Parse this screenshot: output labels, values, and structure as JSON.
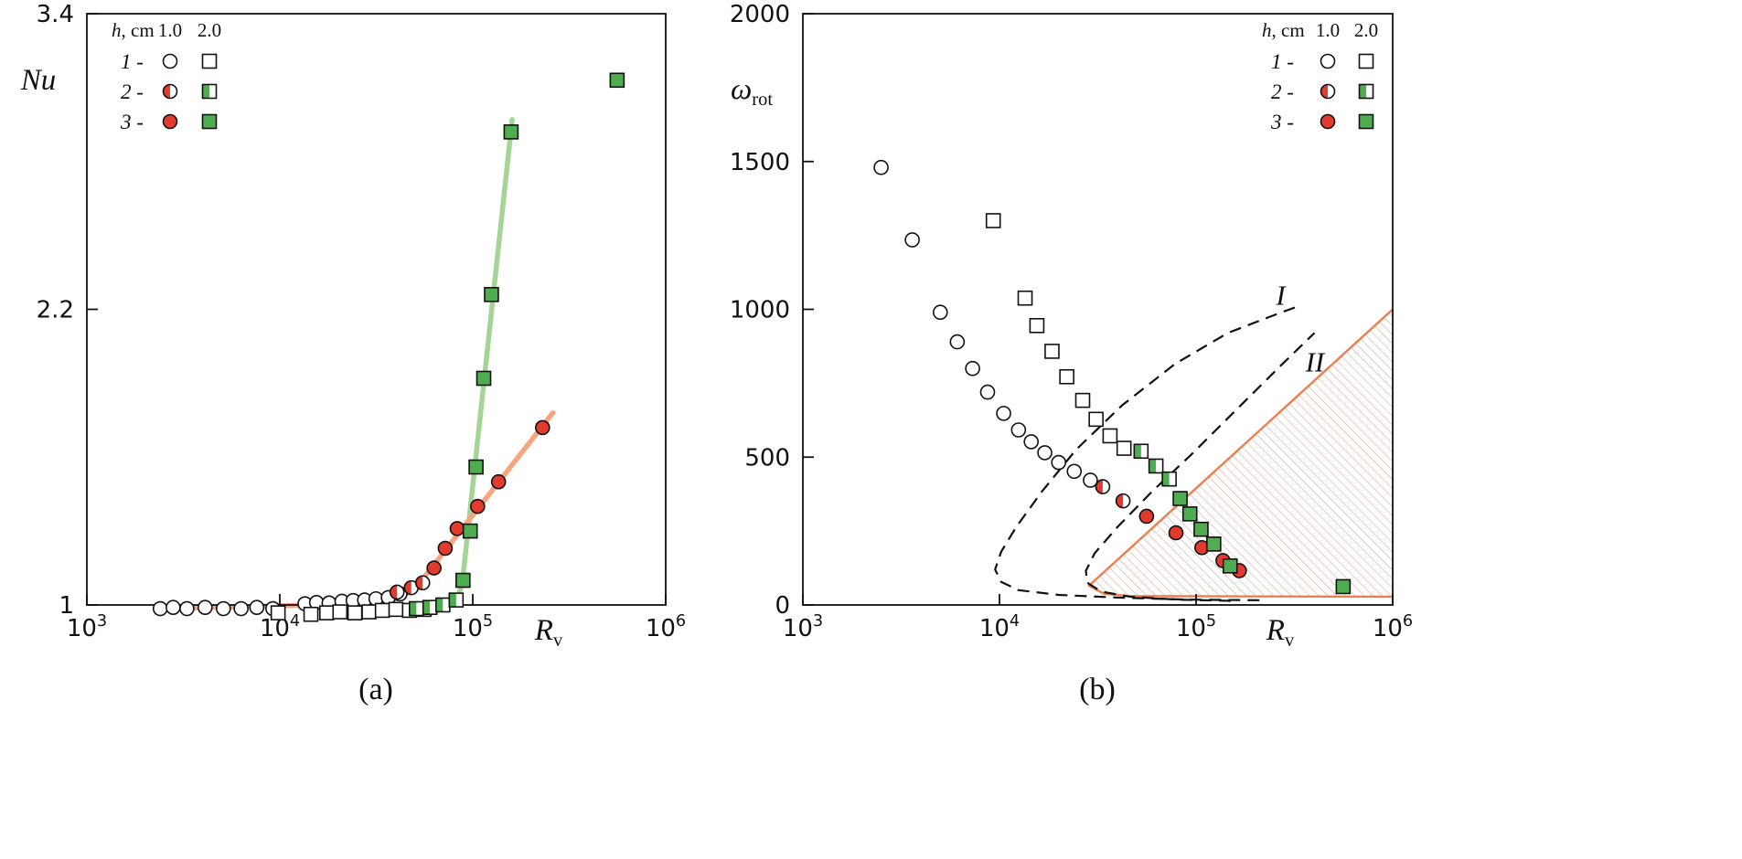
{
  "captions": {
    "a": "(a)",
    "b": "(b)"
  },
  "colors": {
    "red": "#e23b2e",
    "green": "#4fad50",
    "green_line": "#a5d596",
    "orange_line": "#f7a47f",
    "orange_boundary": "#ee7d4f",
    "hatch": "#c9a18c",
    "axis": "#111111"
  },
  "legend": {
    "header_h": "h",
    "header_unit": ", cm",
    "col1": "1.0",
    "col2": "2.0",
    "rows": [
      {
        "label": "1 -",
        "markers": [
          "circle-open",
          "square-open"
        ]
      },
      {
        "label": "2 -",
        "markers": [
          "circle-half",
          "square-half"
        ]
      },
      {
        "label": "3 -",
        "markers": [
          "circle-filled",
          "square-filled"
        ]
      }
    ]
  },
  "chart_data": [
    {
      "id": "a",
      "type": "scatter",
      "xscale": "log",
      "xlabel": {
        "main": "R",
        "sub": "v"
      },
      "ylabel": {
        "main": "Nu",
        "sub": ""
      },
      "xlim": [
        1000,
        1000000
      ],
      "ylim": [
        1,
        3.4
      ],
      "xticks": [
        {
          "value": 1000,
          "exp": "3"
        },
        {
          "value": 10000,
          "exp": "4"
        },
        {
          "value": 100000,
          "exp": "5"
        },
        {
          "value": 1000000,
          "exp": "6"
        }
      ],
      "yticks": [
        {
          "value": 1,
          "label": "1"
        },
        {
          "value": 2.2,
          "label": "2.2"
        },
        {
          "value": 3.4,
          "label": "3.4"
        }
      ],
      "legend_position": "top-left",
      "series": [
        {
          "name": "regime1-h1-open-circles",
          "marker": "circle-open",
          "points": [
            [
              2400,
              0.985
            ],
            [
              2800,
              0.99
            ],
            [
              3300,
              0.985
            ],
            [
              4100,
              0.99
            ],
            [
              5100,
              0.985
            ],
            [
              6300,
              0.985
            ],
            [
              7600,
              0.99
            ],
            [
              9200,
              0.985
            ],
            [
              13500,
              1.005
            ],
            [
              15500,
              1.01
            ],
            [
              18000,
              1.008
            ],
            [
              21000,
              1.015
            ],
            [
              24000,
              1.018
            ],
            [
              27500,
              1.02
            ],
            [
              31500,
              1.025
            ],
            [
              36500,
              1.03
            ],
            [
              42000,
              1.045
            ]
          ]
        },
        {
          "name": "regime1-h2-open-squares",
          "marker": "square-open",
          "points": [
            [
              9800,
              0.968
            ],
            [
              14500,
              0.962
            ],
            [
              17500,
              0.968
            ],
            [
              20500,
              0.972
            ],
            [
              24500,
              0.968
            ],
            [
              29000,
              0.972
            ],
            [
              34000,
              0.978
            ],
            [
              40000,
              0.982
            ],
            [
              47000,
              0.978
            ],
            [
              56000,
              0.982
            ]
          ]
        },
        {
          "name": "regime2-h1-half-circles",
          "marker": "circle-half",
          "points": [
            [
              40500,
              1.052
            ],
            [
              48000,
              1.07
            ],
            [
              55000,
              1.09
            ]
          ]
        },
        {
          "name": "regime3-h1-filled-circles",
          "marker": "circle-filled",
          "points": [
            [
              63000,
              1.15
            ],
            [
              72000,
              1.23
            ],
            [
              83000,
              1.31
            ],
            [
              106000,
              1.4
            ],
            [
              136000,
              1.5
            ],
            [
              230000,
              1.72
            ]
          ]
        },
        {
          "name": "regime2-h2-half-squares",
          "marker": "square-half",
          "points": [
            [
              51000,
              0.985
            ],
            [
              60000,
              0.99
            ],
            [
              70000,
              1.0
            ],
            [
              82000,
              1.02
            ]
          ]
        },
        {
          "name": "regime3-h2-filled-squares",
          "marker": "square-filled",
          "points": [
            [
              89000,
              1.1
            ],
            [
              97000,
              1.3
            ],
            [
              104000,
              1.56
            ],
            [
              114000,
              1.92
            ],
            [
              125000,
              2.26
            ],
            [
              158000,
              2.92
            ],
            [
              560000,
              3.13
            ]
          ]
        }
      ],
      "lines": [
        {
          "name": "fit-line-green",
          "color_key": "green_line",
          "width": 5.5,
          "points": [
            [
              46000,
              0.99
            ],
            [
              80000,
              1.0
            ],
            [
              88000,
              1.08
            ],
            [
              160000,
              2.97
            ]
          ]
        },
        {
          "name": "fit-line-orange",
          "color_key": "orange_line",
          "width": 5.5,
          "points": [
            [
              2300,
              0.985
            ],
            [
              15000,
              1.0
            ],
            [
              40000,
              1.025
            ],
            [
              52000,
              1.08
            ],
            [
              260000,
              1.78
            ]
          ]
        }
      ],
      "curves": [],
      "regions": [],
      "labels": []
    },
    {
      "id": "b",
      "type": "scatter",
      "xscale": "log",
      "xlabel": {
        "main": "R",
        "sub": "v"
      },
      "ylabel": {
        "main": "ω",
        "sub": "rot"
      },
      "xlim": [
        1000,
        1000000
      ],
      "ylim": [
        0,
        2000
      ],
      "xticks": [
        {
          "value": 1000,
          "exp": "3"
        },
        {
          "value": 10000,
          "exp": "4"
        },
        {
          "value": 100000,
          "exp": "5"
        },
        {
          "value": 1000000,
          "exp": "6"
        }
      ],
      "yticks": [
        {
          "value": 0,
          "label": "0"
        },
        {
          "value": 500,
          "label": "500"
        },
        {
          "value": 1000,
          "label": "1000"
        },
        {
          "value": 1500,
          "label": "1500"
        },
        {
          "value": 2000,
          "label": "2000"
        }
      ],
      "legend_position": "top-right",
      "series": [
        {
          "name": "regime1-h1-open-circles",
          "marker": "circle-open",
          "points": [
            [
              2500,
              1480
            ],
            [
              3600,
              1235
            ],
            [
              5000,
              990
            ],
            [
              6100,
              890
            ],
            [
              7300,
              800
            ],
            [
              8700,
              720
            ],
            [
              10500,
              648
            ],
            [
              12500,
              592
            ],
            [
              14500,
              552
            ],
            [
              17000,
              515
            ],
            [
              20000,
              482
            ],
            [
              24000,
              452
            ],
            [
              29000,
              422
            ]
          ]
        },
        {
          "name": "regime1-h2-open-squares",
          "marker": "square-open",
          "points": [
            [
              9300,
              1300
            ],
            [
              13500,
              1038
            ],
            [
              15500,
              945
            ],
            [
              18500,
              858
            ],
            [
              22000,
              772
            ],
            [
              26500,
              692
            ],
            [
              31000,
              628
            ],
            [
              36500,
              572
            ],
            [
              43000,
              530
            ]
          ]
        },
        {
          "name": "regime2-h1-half-circles",
          "marker": "circle-half",
          "points": [
            [
              33500,
              400
            ],
            [
              42500,
              352
            ]
          ]
        },
        {
          "name": "regime3-h1-filled-circles",
          "marker": "circle-filled",
          "points": [
            [
              56000,
              300
            ],
            [
              79000,
              244
            ],
            [
              107000,
              194
            ],
            [
              137000,
              150
            ],
            [
              166000,
              116
            ]
          ]
        },
        {
          "name": "regime2-h2-half-squares",
          "marker": "square-half",
          "points": [
            [
              52500,
              520
            ],
            [
              62500,
              470
            ],
            [
              73000,
              426
            ]
          ]
        },
        {
          "name": "regime3-h2-filled-squares",
          "marker": "square-filled",
          "points": [
            [
              83000,
              360
            ],
            [
              93000,
              308
            ],
            [
              106000,
              256
            ],
            [
              123000,
              206
            ],
            [
              149000,
              132
            ],
            [
              560000,
              62
            ]
          ]
        }
      ],
      "lines": [],
      "curves": [
        {
          "name": "stability-boundary-I-dashed",
          "points": [
            [
              210000,
              16
            ],
            [
              90000,
              18
            ],
            [
              40000,
              25
            ],
            [
              20000,
              34
            ],
            [
              12500,
              50
            ],
            [
              10200,
              78
            ],
            [
              9500,
              120
            ],
            [
              10200,
              180
            ],
            [
              12200,
              265
            ],
            [
              16500,
              385
            ],
            [
              24500,
              525
            ],
            [
              42000,
              675
            ],
            [
              78000,
              815
            ],
            [
              145000,
              920
            ],
            [
              260000,
              985
            ],
            [
              330000,
              1010
            ]
          ]
        },
        {
          "name": "stability-boundary-II-dashed",
          "points": [
            [
              150000,
              14
            ],
            [
              80000,
              18
            ],
            [
              46000,
              28
            ],
            [
              33000,
              45
            ],
            [
              28000,
              75
            ],
            [
              27500,
              115
            ],
            [
              30500,
              175
            ],
            [
              40000,
              265
            ],
            [
              60000,
              385
            ],
            [
              95000,
              510
            ],
            [
              160000,
              660
            ],
            [
              270000,
              810
            ],
            [
              400000,
              920
            ]
          ]
        }
      ],
      "regions": [
        {
          "name": "hatched-instability-region",
          "top": [
            [
              28500,
              65
            ],
            [
              1000000,
              1000
            ]
          ],
          "bottom": [
            [
              28500,
              65
            ],
            [
              34000,
              38
            ],
            [
              46000,
              30
            ],
            [
              1000000,
              28
            ]
          ]
        }
      ],
      "labels": [
        {
          "text": "I",
          "x": 255000,
          "y": 1015
        },
        {
          "text": "II",
          "x": 360000,
          "y": 790
        }
      ]
    }
  ]
}
